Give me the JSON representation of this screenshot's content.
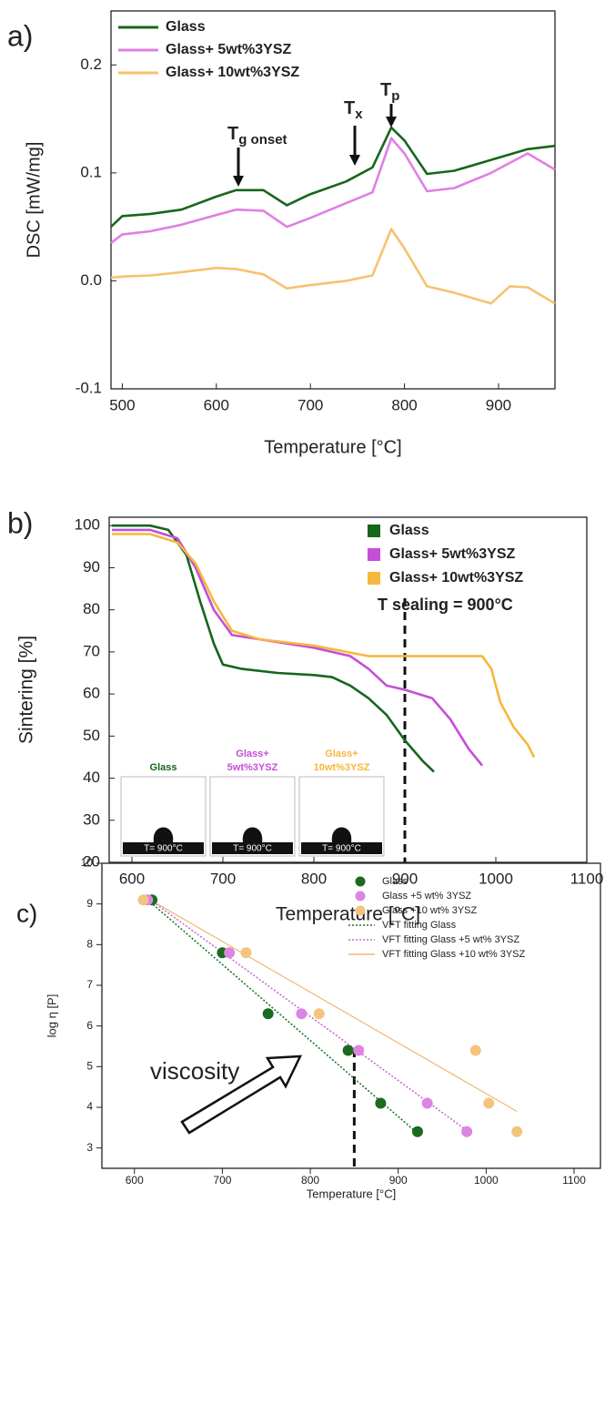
{
  "chart_data": [
    {
      "type": "line",
      "panel": "a)",
      "x_label": "Temperature [°C]",
      "y_label": "DSC [mW/mg]",
      "xlim": [
        488,
        960
      ],
      "xticks": [
        500,
        600,
        700,
        800,
        900
      ],
      "ylim": [
        -0.1,
        0.25
      ],
      "yticks": [
        -0.1,
        {
          "value": 0,
          "label": "0.0"
        },
        0.1,
        0.2
      ],
      "legend": "top-left",
      "annotations": [
        {
          "text": "T",
          "sub": "g onset"
        },
        {
          "text": "T",
          "sub": "x"
        },
        {
          "text": "T",
          "sub": "p"
        }
      ],
      "series": [
        {
          "name": "Glass",
          "color": "#17661c",
          "x": [
            488,
            500,
            530,
            563,
            600,
            621,
            650,
            675,
            699,
            738,
            766,
            786,
            800,
            824,
            853,
            892,
            931,
            960
          ],
          "values": [
            0.05,
            0.06,
            0.062,
            0.066,
            0.078,
            0.084,
            0.084,
            0.07,
            0.08,
            0.092,
            0.105,
            0.142,
            0.13,
            0.099,
            0.102,
            0.112,
            0.122,
            0.125
          ]
        },
        {
          "name": "Glass+ 5wt%3YSZ",
          "color": "#e07fe3",
          "x": [
            488,
            500,
            530,
            563,
            600,
            621,
            650,
            675,
            699,
            738,
            766,
            786,
            800,
            824,
            853,
            892,
            931,
            960
          ],
          "values": [
            0.035,
            0.043,
            0.046,
            0.052,
            0.061,
            0.066,
            0.065,
            0.05,
            0.058,
            0.072,
            0.082,
            0.132,
            0.118,
            0.083,
            0.086,
            0.1,
            0.118,
            0.103
          ]
        },
        {
          "name": "Glass+ 10wt%3YSZ",
          "color": "#f5c36e",
          "x": [
            488,
            500,
            530,
            563,
            600,
            621,
            650,
            675,
            699,
            738,
            766,
            786,
            800,
            824,
            853,
            892,
            912,
            931,
            960
          ],
          "values": [
            0.003,
            0.004,
            0.005,
            0.008,
            0.012,
            0.011,
            0.006,
            -0.007,
            -0.004,
            0.0,
            0.005,
            0.048,
            0.03,
            -0.005,
            -0.011,
            -0.021,
            -0.005,
            -0.006,
            -0.021
          ]
        }
      ]
    },
    {
      "type": "line",
      "panel": "b)",
      "x_label": "Temperature [°C]",
      "y_label": "Sintering [%]",
      "xlim": [
        575,
        1100
      ],
      "xticks": [
        600,
        700,
        800,
        900,
        1000,
        1100
      ],
      "ylim": [
        20,
        102
      ],
      "yticks": [
        20,
        30,
        40,
        50,
        60,
        70,
        80,
        90,
        100
      ],
      "legend": "top-right",
      "vline": 900,
      "annotation": "T sealing = 900°C",
      "insets": [
        {
          "label": [
            "Glass"
          ],
          "caption": "T= 900°C"
        },
        {
          "label": [
            "Glass+",
            "5wt%3YSZ"
          ],
          "caption": "T= 900°C"
        },
        {
          "label": [
            "Glass+",
            "10wt%3YSZ"
          ],
          "caption": "T= 900°C"
        }
      ],
      "series": [
        {
          "name": "Glass",
          "color": "#17661c",
          "x": [
            578,
            620,
            640,
            660,
            675,
            690,
            700,
            720,
            760,
            800,
            820,
            840,
            860,
            880,
            900,
            920,
            932
          ],
          "values": [
            100,
            100,
            99,
            93,
            82,
            72,
            67,
            66,
            65,
            64.5,
            64,
            62,
            59,
            55,
            49,
            44,
            41.5
          ]
        },
        {
          "name": "Glass+ 5wt%3YSZ",
          "color": "#c44fd6",
          "x": [
            578,
            620,
            650,
            670,
            690,
            710,
            740,
            800,
            840,
            860,
            880,
            900,
            930,
            950,
            970,
            985
          ],
          "values": [
            99,
            99,
            97,
            90,
            80,
            74,
            73,
            71,
            69,
            66,
            62,
            61,
            59,
            54,
            47,
            43
          ]
        },
        {
          "name": "Glass+ 10wt%3YSZ",
          "color": "#f6b73c",
          "x": [
            578,
            620,
            650,
            670,
            690,
            710,
            740,
            800,
            860,
            900,
            960,
            985,
            995,
            1005,
            1020,
            1035,
            1042
          ],
          "values": [
            98,
            98,
            96,
            91,
            82,
            75,
            73,
            71.5,
            69,
            69,
            69,
            69,
            66,
            58,
            52,
            48,
            45
          ]
        }
      ]
    },
    {
      "type": "scatter",
      "panel": "c)",
      "x_label": "Temperature [°C]",
      "y_label": "log η [P]",
      "xlim": [
        563,
        1130
      ],
      "xticks": [
        600,
        700,
        800,
        900,
        1000,
        1100
      ],
      "ylim": [
        2.5,
        10
      ],
      "yticks": [
        3,
        4,
        5,
        6,
        7,
        8,
        9,
        10
      ],
      "legend": "top-right",
      "vline": 850,
      "annotation": "viscosity",
      "series": [
        {
          "name": "Glass",
          "color": "#1a6b1e",
          "x": [
            620,
            700,
            752,
            843,
            880,
            922
          ],
          "values": [
            9.1,
            7.8,
            6.3,
            5.4,
            4.1,
            3.4
          ]
        },
        {
          "name": "Glass +5 wt% 3YSZ",
          "color": "#dc85e3",
          "x": [
            615,
            708,
            790,
            855,
            933,
            978
          ],
          "values": [
            9.1,
            7.8,
            6.3,
            5.4,
            4.1,
            3.4
          ]
        },
        {
          "name": "Glass +10 wt% 3YSZ",
          "color": "#f4c47f",
          "x": [
            610,
            727,
            810,
            988,
            1003,
            1035
          ],
          "values": [
            9.1,
            7.8,
            6.3,
            5.4,
            4.1,
            3.4
          ]
        }
      ],
      "fit_lines": [
        {
          "name": "VFT fitting Glass",
          "color": "#1a7a1e",
          "style": "dotted",
          "x": [
            615,
            920
          ],
          "values": [
            9.1,
            3.4
          ]
        },
        {
          "name": "VFT fitting Glass +5 wt% 3YSZ",
          "color": "#c86ad0",
          "style": "dotted",
          "x": [
            618,
            980
          ],
          "values": [
            9.1,
            3.4
          ]
        },
        {
          "name": "VFT fitting Glass +10 wt% 3YSZ",
          "color": "#f0b870",
          "style": "solid",
          "x": [
            618,
            1035
          ],
          "values": [
            9.1,
            3.9
          ]
        }
      ]
    }
  ]
}
